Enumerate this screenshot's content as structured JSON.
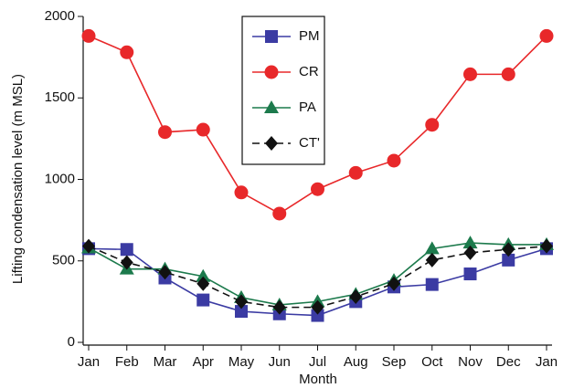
{
  "chart_data": {
    "type": "line",
    "x_label": "Month",
    "y_label": "Lifting condensation level (m MSL)",
    "categories": [
      "Jan",
      "Feb",
      "Mar",
      "Apr",
      "May",
      "Jun",
      "Jul",
      "Aug",
      "Sep",
      "Oct",
      "Nov",
      "Dec",
      "Jan"
    ],
    "series": [
      {
        "name": "PM",
        "color": "#3b3ba3",
        "marker": "square",
        "dashed": false,
        "values": [
          575,
          570,
          395,
          260,
          190,
          175,
          165,
          250,
          340,
          355,
          420,
          505,
          575
        ]
      },
      {
        "name": "CR",
        "color": "#e8282a",
        "marker": "circle",
        "dashed": false,
        "values": [
          1880,
          1780,
          1290,
          1305,
          920,
          790,
          940,
          1040,
          1115,
          1335,
          1645,
          1645,
          1880
        ]
      },
      {
        "name": "PA",
        "color": "#1c7a4c",
        "marker": "triangle",
        "dashed": false,
        "values": [
          580,
          450,
          450,
          405,
          275,
          230,
          250,
          295,
          380,
          575,
          610,
          600,
          600
        ]
      },
      {
        "name": "CT'",
        "color": "#111111",
        "marker": "diamond",
        "dashed": true,
        "values": [
          590,
          490,
          430,
          360,
          250,
          215,
          215,
          280,
          360,
          505,
          550,
          570,
          590
        ]
      }
    ],
    "ylim": [
      0,
      2000
    ],
    "yticks": [
      0,
      500,
      1000,
      1500,
      2000
    ]
  }
}
